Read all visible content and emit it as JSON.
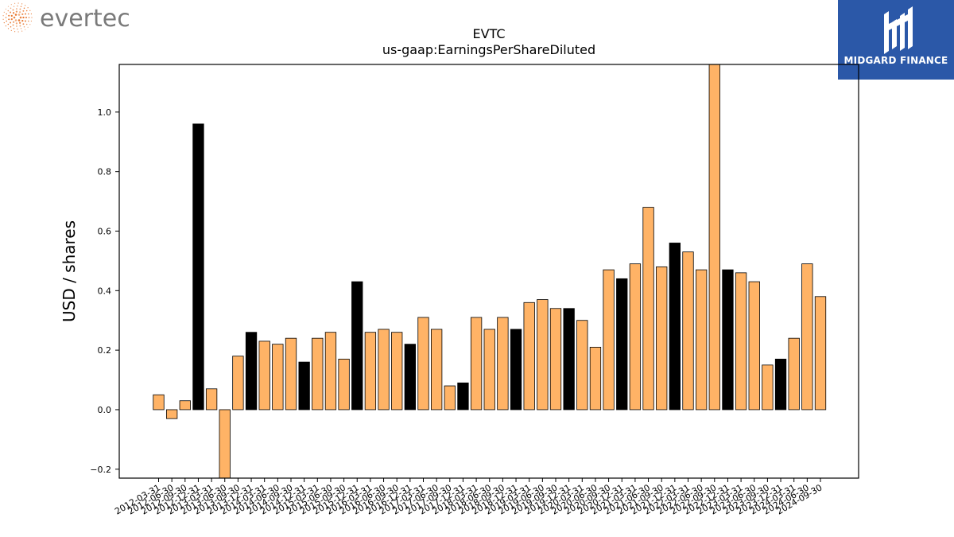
{
  "brand_left": {
    "name": "evertec",
    "icon": "dotted-swirl-icon",
    "dot_color": "#e8742a",
    "text_color": "#7a7a7a"
  },
  "brand_right": {
    "name": "MIDGARD FINANCE",
    "icon": "midgard-logo-icon",
    "bg_color": "#2b58a8"
  },
  "chart_data": {
    "type": "bar",
    "title": "EVTC",
    "subtitle": "us-gaap:EarningsPerShareDiluted",
    "xlabel": "",
    "ylabel": "USD / shares",
    "ylim": [
      -0.23,
      1.16
    ],
    "yticks": [
      -0.2,
      0.0,
      0.2,
      0.4,
      0.6,
      0.8,
      1.0
    ],
    "ytick_labels": [
      "−0.2",
      "0.0",
      "0.2",
      "0.4",
      "0.6",
      "0.8",
      "1.0"
    ],
    "grid": false,
    "colors": {
      "normal": "#ffb366",
      "highlight": "#000000",
      "edge": "#000000"
    },
    "categories": [
      "2012-03-31",
      "2012-06-30",
      "2012-09-30",
      "2012-12-31",
      "2013-03-31",
      "2013-06-30",
      "2013-09-30",
      "2013-12-31",
      "2014-03-31",
      "2014-06-30",
      "2014-09-30",
      "2014-12-31",
      "2015-03-31",
      "2015-06-30",
      "2015-09-30",
      "2015-12-31",
      "2016-03-31",
      "2016-06-30",
      "2016-09-30",
      "2016-12-31",
      "2017-03-31",
      "2017-06-30",
      "2017-09-30",
      "2017-12-31",
      "2018-03-31",
      "2018-06-30",
      "2018-09-30",
      "2018-12-31",
      "2019-03-31",
      "2019-06-30",
      "2019-09-30",
      "2019-12-31",
      "2020-03-31",
      "2020-06-30",
      "2020-09-30",
      "2020-12-31",
      "2021-03-31",
      "2021-06-30",
      "2021-09-30",
      "2021-12-31",
      "2022-03-31",
      "2022-06-30",
      "2022-09-30",
      "2022-12-31",
      "2023-03-31",
      "2023-06-30",
      "2023-09-30",
      "2023-12-31",
      "2024-03-31",
      "2024-06-30",
      "2024-09-30"
    ],
    "values": [
      0.05,
      -0.03,
      0.03,
      0.96,
      0.07,
      -0.23,
      0.18,
      0.26,
      0.23,
      0.22,
      0.24,
      0.16,
      0.24,
      0.26,
      0.17,
      0.43,
      0.26,
      0.27,
      0.26,
      0.22,
      0.31,
      0.27,
      0.08,
      0.09,
      0.31,
      0.27,
      0.31,
      0.27,
      0.36,
      0.37,
      0.34,
      0.34,
      0.3,
      0.21,
      0.47,
      0.44,
      0.49,
      0.68,
      0.48,
      0.56,
      0.53,
      0.47,
      1.16,
      0.47,
      0.46,
      0.43,
      0.15,
      0.17,
      0.24,
      0.49,
      0.38
    ],
    "highlight": [
      false,
      false,
      false,
      true,
      false,
      false,
      false,
      true,
      false,
      false,
      false,
      true,
      false,
      false,
      false,
      true,
      false,
      false,
      false,
      true,
      false,
      false,
      false,
      true,
      false,
      false,
      false,
      true,
      false,
      false,
      false,
      true,
      false,
      false,
      false,
      true,
      false,
      false,
      false,
      true,
      false,
      false,
      false,
      true,
      false,
      false,
      false,
      true,
      false,
      false,
      false
    ]
  }
}
